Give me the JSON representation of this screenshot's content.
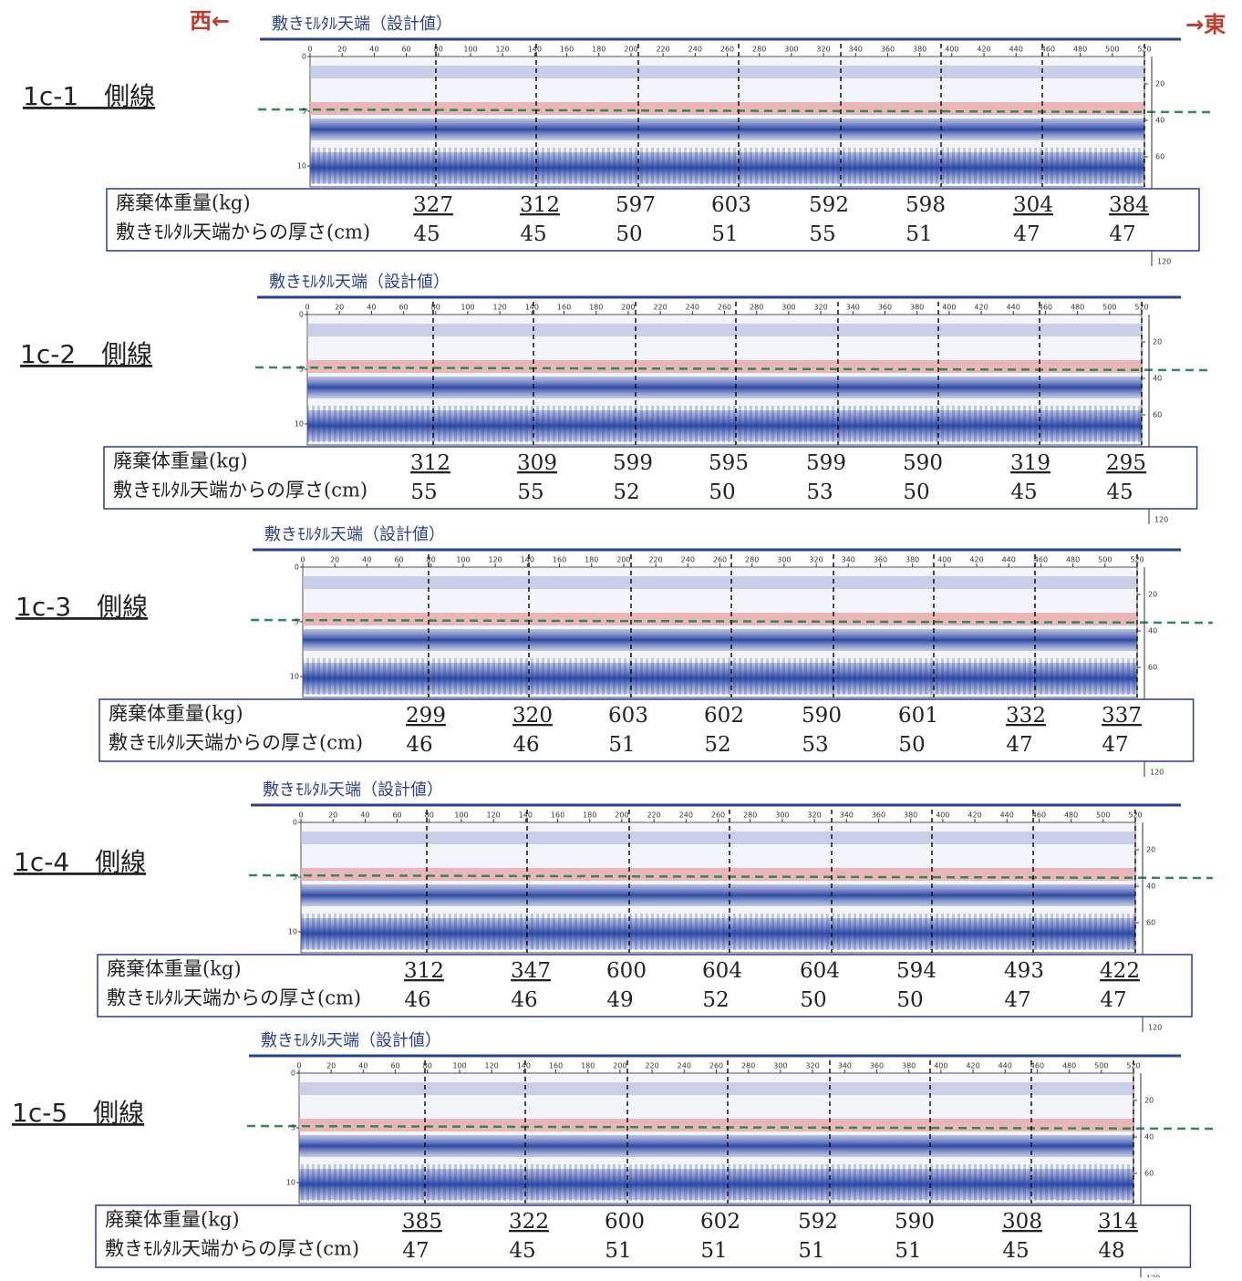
{
  "header": {
    "west": "西←",
    "east": "→東"
  },
  "axis": {
    "top": [
      0,
      20,
      40,
      60,
      80,
      100,
      120,
      140,
      160,
      180,
      200,
      220,
      240,
      260,
      280,
      300,
      320,
      340,
      360,
      380,
      400,
      420,
      440,
      460,
      480,
      500,
      520
    ],
    "left": [
      0,
      5,
      10
    ],
    "right": [
      20,
      40,
      60
    ],
    "bottom_right": "120"
  },
  "panels": [
    {
      "label": "1c-1　側線",
      "design_label": "敷きﾓﾙﾀﾙ天端（設計値）",
      "row_labels": [
        "廃棄体重量(kg)",
        "敷きﾓﾙﾀﾙ天端からの厚さ(cm)"
      ],
      "weights": [
        327,
        312,
        597,
        603,
        592,
        598,
        304,
        384
      ],
      "thickness": [
        45,
        45,
        50,
        51,
        55,
        51,
        47,
        47
      ],
      "underlined": [
        true,
        true,
        false,
        false,
        false,
        false,
        true,
        true
      ]
    },
    {
      "label": "1c-2　側線",
      "design_label": "敷きﾓﾙﾀﾙ天端（設計値）",
      "row_labels": [
        "廃棄体重量(kg)",
        "敷きﾓﾙﾀﾙ天端からの厚さ(cm)"
      ],
      "weights": [
        312,
        309,
        599,
        595,
        599,
        590,
        319,
        295
      ],
      "thickness": [
        55,
        55,
        52,
        50,
        53,
        50,
        45,
        45
      ],
      "underlined": [
        true,
        true,
        false,
        false,
        false,
        false,
        true,
        true
      ]
    },
    {
      "label": "1c-3　側線",
      "design_label": "敷きﾓﾙﾀﾙ天端（設計値）",
      "row_labels": [
        "廃棄体重量(kg)",
        "敷きﾓﾙﾀﾙ天端からの厚さ(cm)"
      ],
      "weights": [
        299,
        320,
        603,
        602,
        590,
        601,
        332,
        337
      ],
      "thickness": [
        46,
        46,
        51,
        52,
        53,
        50,
        47,
        47
      ],
      "underlined": [
        true,
        true,
        false,
        false,
        false,
        false,
        true,
        true
      ]
    },
    {
      "label": "1c-4　側線",
      "design_label": "敷きﾓﾙﾀﾙ天端（設計値）",
      "row_labels": [
        "廃棄体重量(kg)",
        "敷きﾓﾙﾀﾙ天端からの厚さ(cm)"
      ],
      "weights": [
        312,
        347,
        600,
        604,
        604,
        594,
        493,
        422
      ],
      "thickness": [
        46,
        46,
        49,
        52,
        50,
        50,
        47,
        47
      ],
      "underlined": [
        true,
        true,
        false,
        false,
        false,
        false,
        false,
        true
      ]
    },
    {
      "label": "1c-5　側線",
      "design_label": "敷きﾓﾙﾀﾙ天端（設計値）",
      "row_labels": [
        "廃棄体重量(kg)",
        "敷きﾓﾙﾀﾙ天端からの厚さ(cm)"
      ],
      "weights": [
        385,
        322,
        600,
        602,
        592,
        590,
        308,
        314
      ],
      "thickness": [
        47,
        45,
        51,
        51,
        51,
        51,
        45,
        48
      ],
      "underlined": [
        true,
        true,
        false,
        false,
        false,
        false,
        true,
        true
      ]
    }
  ]
}
